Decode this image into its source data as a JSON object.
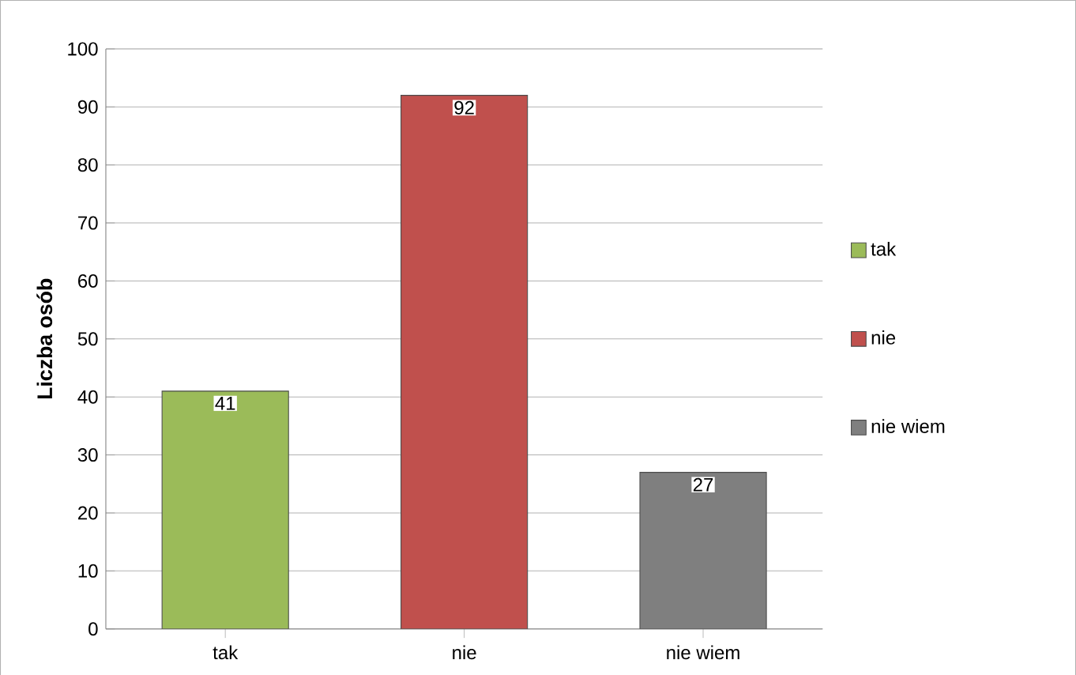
{
  "chart_data": {
    "type": "bar",
    "ylabel": "Liczba osób",
    "categories": [
      "tak",
      "nie",
      "nie wiem"
    ],
    "series": [
      {
        "name": "tak",
        "color": "#9bbb59",
        "values": [
          41,
          null,
          null
        ]
      },
      {
        "name": "nie",
        "color": "#c0504d",
        "values": [
          null,
          92,
          null
        ]
      },
      {
        "name": "nie wiem",
        "color": "#7f7f7f",
        "values": [
          null,
          null,
          27
        ]
      }
    ],
    "ylim": [
      0,
      100
    ],
    "yticks": [
      0,
      10,
      20,
      30,
      40,
      50,
      60,
      70,
      80,
      90,
      100
    ],
    "grid": "y",
    "legend": "right",
    "data_labels": true
  }
}
